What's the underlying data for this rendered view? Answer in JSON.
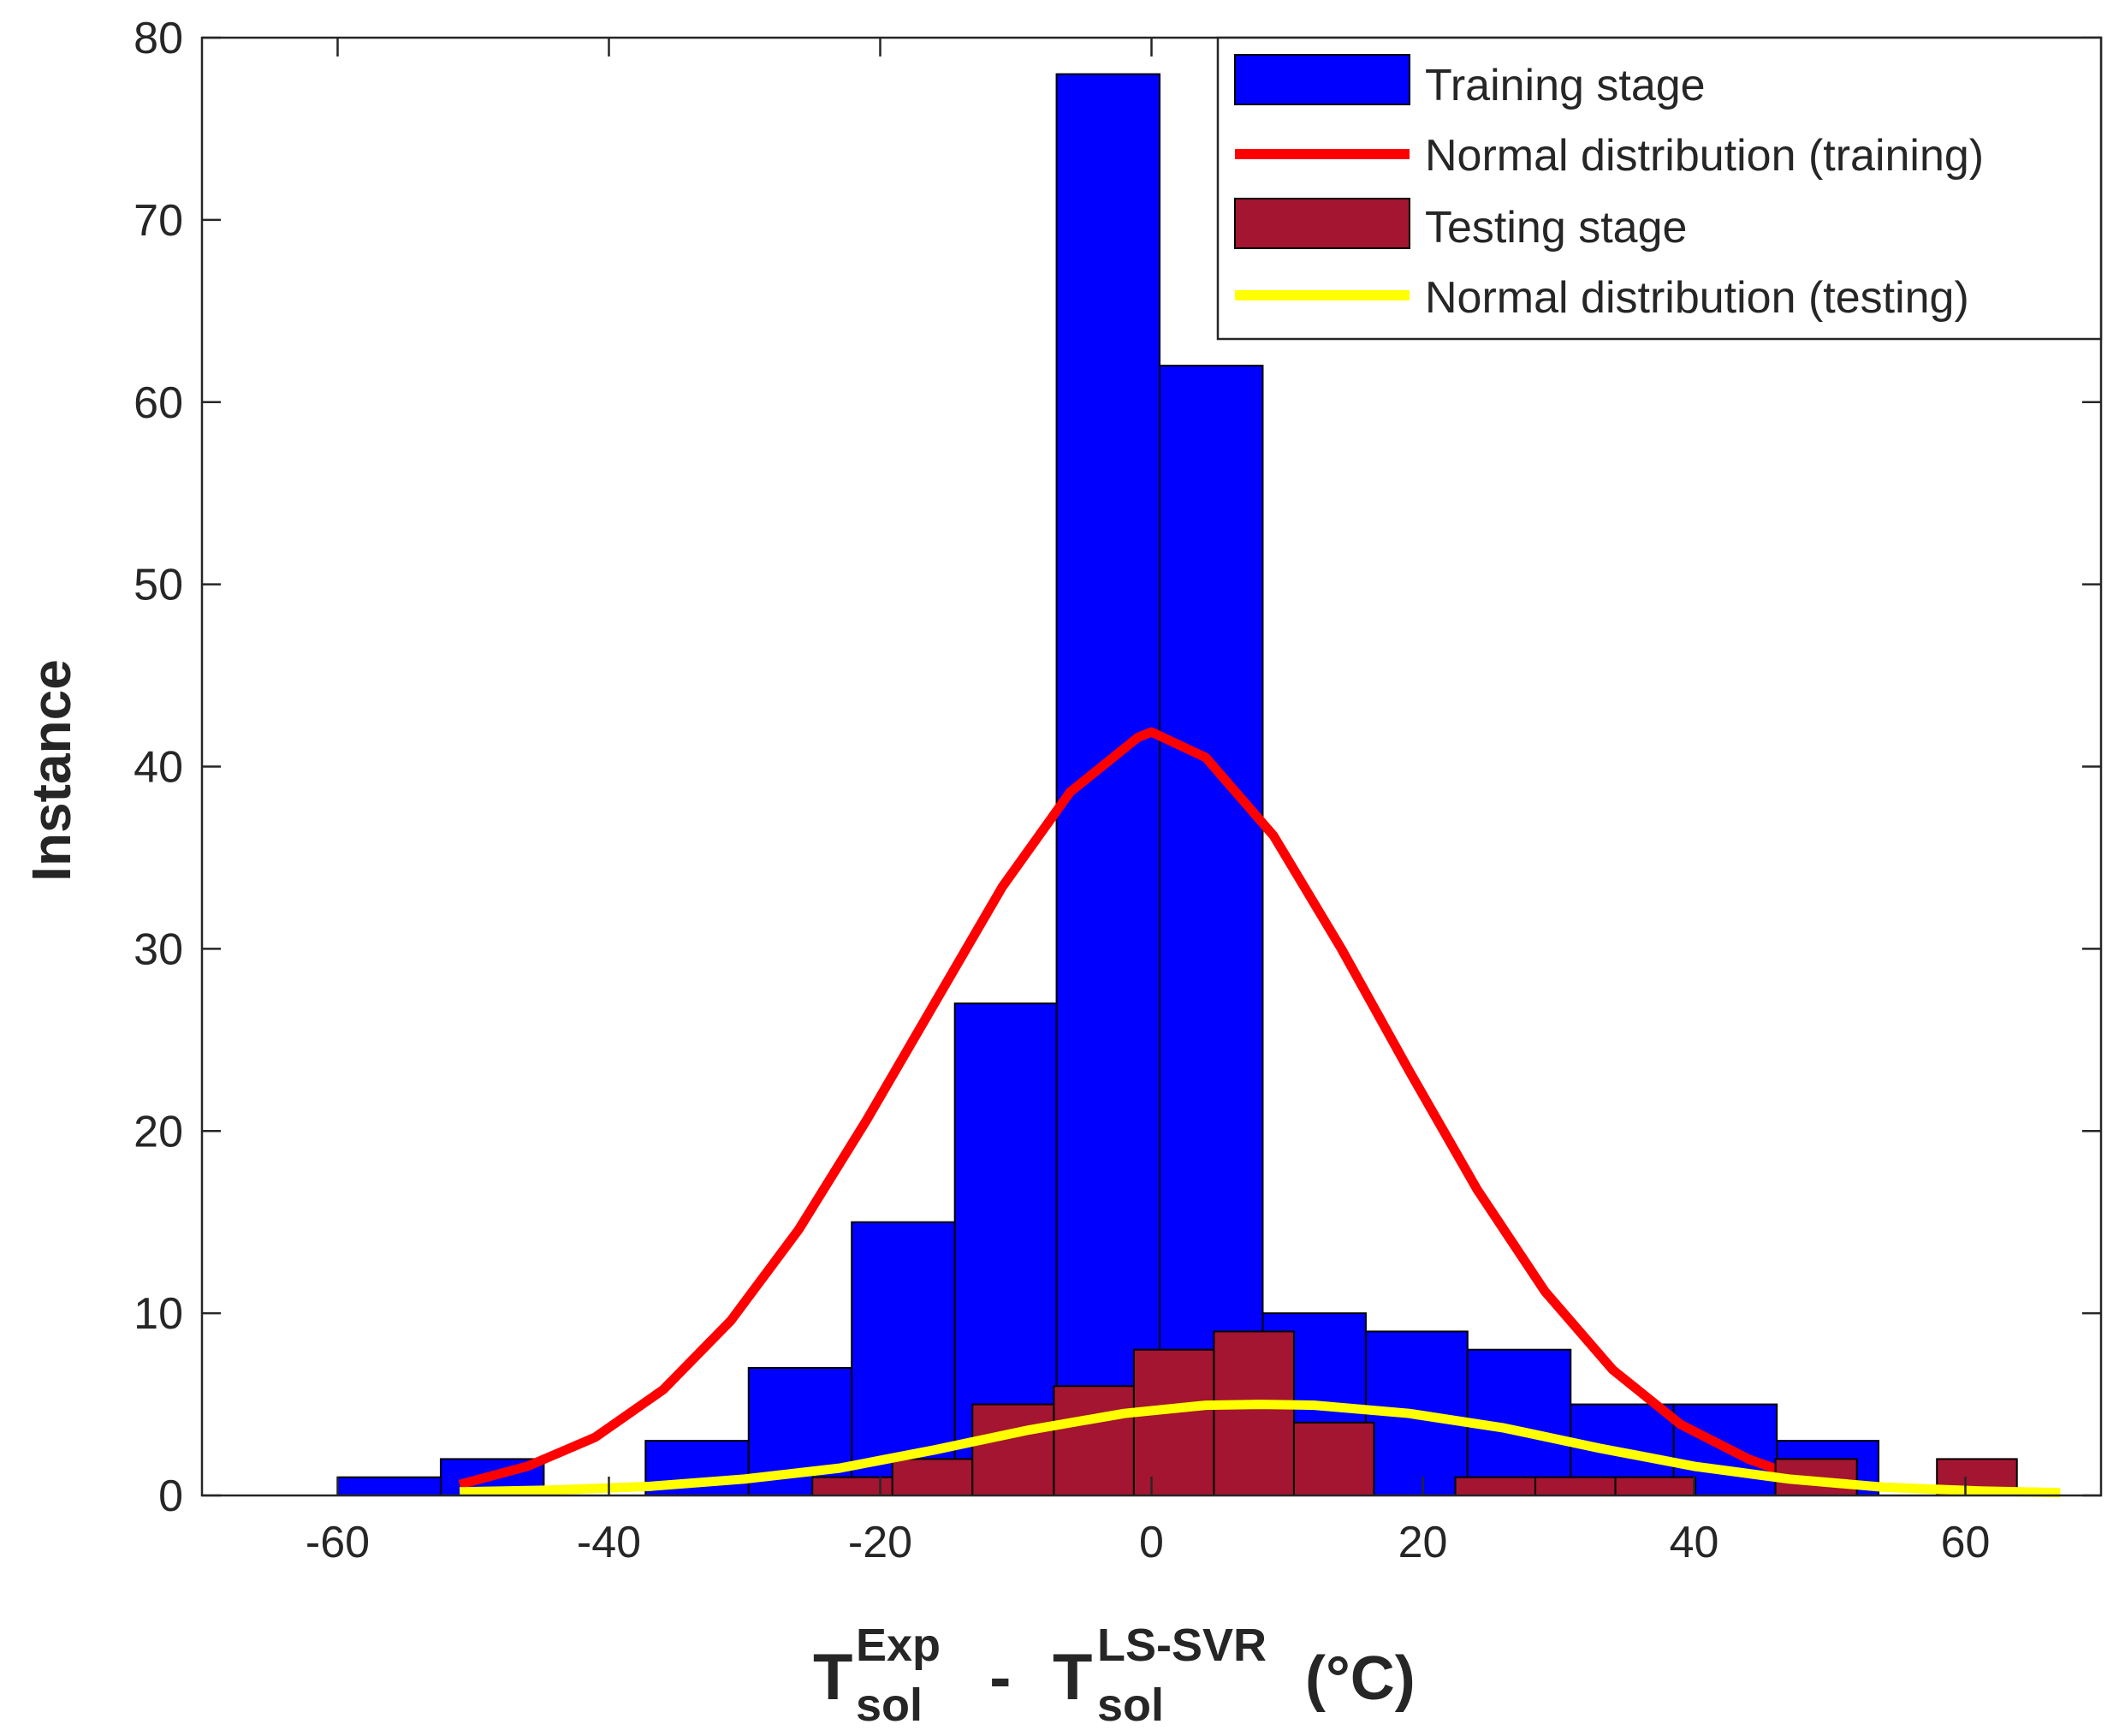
{
  "chart_data": {
    "type": "bar",
    "title": "",
    "xlabel": {
      "base1": "T",
      "sup1": "Exp",
      "sub1": "sol",
      "mid": " - ",
      "base2": "T",
      "sup2": "LS-SVR",
      "sub2": "sol",
      "unit": " (°C)"
    },
    "ylabel": "Instance",
    "xlim": [
      -70,
      70
    ],
    "ylim": [
      0,
      80
    ],
    "xticks": [
      -60,
      -40,
      -20,
      0,
      20,
      40,
      60
    ],
    "xtick_labels": [
      "-60",
      "-40",
      "-20",
      "0",
      "20",
      "40",
      "60"
    ],
    "yticks": [
      0,
      10,
      20,
      30,
      40,
      50,
      60,
      70,
      80
    ],
    "ytick_labels": [
      "0",
      "10",
      "20",
      "30",
      "40",
      "50",
      "60",
      "70",
      "80"
    ],
    "legend_position": "top-right",
    "series": [
      {
        "name": "Training stage",
        "kind": "histogram",
        "color": "#0000FF",
        "bin_edges": [
          -60,
          -52.4,
          -44.8,
          -37.3,
          -29.7,
          -22.1,
          -14.5,
          -7.0,
          0.6,
          8.2,
          15.8,
          23.3,
          30.9,
          38.5,
          46.1,
          53.6
        ],
        "counts": [
          1,
          2,
          0,
          3,
          7,
          15,
          27,
          78,
          62,
          10,
          9,
          8,
          5,
          5,
          3
        ]
      },
      {
        "name": "Normal distribution (training)",
        "kind": "line",
        "color": "#FF0000",
        "x": [
          -51,
          -46,
          -41,
          -36,
          -31,
          -26,
          -21,
          -16,
          -11,
          -6,
          -1,
          0,
          4,
          9,
          14,
          19,
          24,
          29,
          34,
          39,
          44,
          47
        ],
        "y": [
          0.6,
          1.6,
          3.2,
          5.8,
          9.6,
          14.6,
          20.6,
          27.0,
          33.4,
          38.6,
          41.6,
          41.9,
          40.5,
          36.2,
          30.0,
          23.3,
          16.8,
          11.2,
          6.9,
          3.9,
          2.0,
          1.2
        ]
      },
      {
        "name": "Testing stage",
        "kind": "histogram",
        "color": "#A31530",
        "bin_edges": [
          -25,
          -19.1,
          -13.2,
          -7.2,
          -1.3,
          4.6,
          10.5,
          16.4,
          22.4,
          28.3,
          34.2,
          40.1,
          46.0,
          52.0,
          57.9,
          63.8
        ],
        "counts": [
          1,
          2,
          5,
          6,
          8,
          9,
          4,
          0,
          1,
          1,
          1,
          0,
          2,
          0,
          2
        ]
      },
      {
        "name": "Normal distribution (testing)",
        "kind": "line",
        "color": "#FFFF00",
        "x": [
          -51,
          -44,
          -37,
          -30,
          -23,
          -16,
          -9,
          -2,
          4,
          8,
          12,
          19,
          26,
          33,
          40,
          47,
          54,
          61,
          67
        ],
        "y": [
          0.2,
          0.3,
          0.5,
          0.9,
          1.5,
          2.5,
          3.6,
          4.5,
          4.95,
          5.0,
          4.95,
          4.5,
          3.7,
          2.6,
          1.6,
          0.9,
          0.45,
          0.25,
          0.15
        ]
      }
    ]
  }
}
